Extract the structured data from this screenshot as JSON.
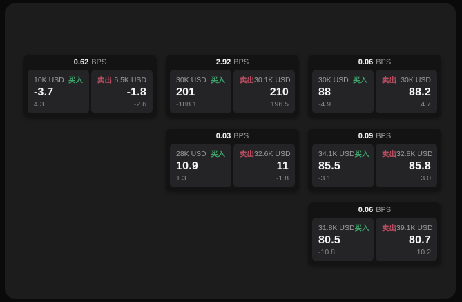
{
  "labels": {
    "bps_unit": "BPS",
    "buy": "买入",
    "sell": "卖出"
  },
  "colors": {
    "buy": "#3fa56b",
    "sell": "#c04f63",
    "panel_background": "#1c1c1d",
    "card_background": "#131314",
    "tile_background": "#242427"
  },
  "cards": [
    {
      "col": 1,
      "row": 1,
      "bps": "0.62",
      "buy": {
        "amount": "10K USD",
        "price": "-3.7",
        "change": "4.3"
      },
      "sell": {
        "amount": "5.5K USD",
        "price": "-1.8",
        "change": "-2.6"
      }
    },
    {
      "col": 2,
      "row": 1,
      "bps": "2.92",
      "buy": {
        "amount": "30K USD",
        "price": "201",
        "change": "-188.1"
      },
      "sell": {
        "amount": "30.1K USD",
        "price": "210",
        "change": "196.5"
      }
    },
    {
      "col": 3,
      "row": 1,
      "bps": "0.06",
      "buy": {
        "amount": "30K USD",
        "price": "88",
        "change": "-4.9"
      },
      "sell": {
        "amount": "30K USD",
        "price": "88.2",
        "change": "4.7"
      }
    },
    {
      "col": 2,
      "row": 2,
      "bps": "0.03",
      "buy": {
        "amount": "28K USD",
        "price": "10.9",
        "change": "1.3"
      },
      "sell": {
        "amount": "32.6K USD",
        "price": "11",
        "change": "-1.8"
      }
    },
    {
      "col": 3,
      "row": 2,
      "bps": "0.09",
      "buy": {
        "amount": "34.1K USD",
        "price": "85.5",
        "change": "-3.1"
      },
      "sell": {
        "amount": "32.8K USD",
        "price": "85.8",
        "change": "3.0"
      }
    },
    {
      "col": 3,
      "row": 3,
      "bps": "0.06",
      "buy": {
        "amount": "31.8K USD",
        "price": "80.5",
        "change": "-10.8"
      },
      "sell": {
        "amount": "39.1K USD",
        "price": "80.7",
        "change": "10.2"
      }
    }
  ]
}
